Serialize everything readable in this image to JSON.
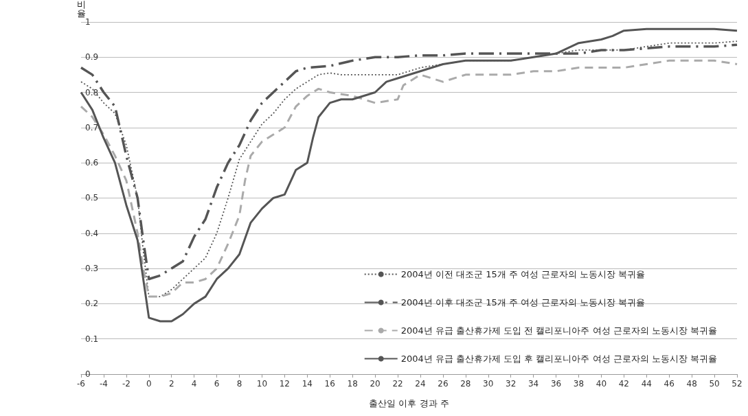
{
  "chart_data": {
    "type": "line",
    "xlabel": "출산일 이후 경과 주",
    "ylabel": "비율",
    "xlim": [
      -6,
      52
    ],
    "xticks": [
      -6,
      -4,
      -2,
      0,
      2,
      4,
      6,
      8,
      10,
      12,
      14,
      16,
      18,
      20,
      22,
      24,
      26,
      28,
      30,
      32,
      34,
      36,
      38,
      40,
      42,
      44,
      46,
      48,
      50,
      52
    ],
    "ylim": [
      0,
      1
    ],
    "yticks": [
      0,
      0.1,
      0.2,
      0.3,
      0.4,
      0.5,
      0.6,
      0.7,
      0.8,
      0.9,
      1
    ],
    "grid": "y",
    "legend": "bottom right",
    "marker": "none",
    "series": [
      {
        "name": "2004년 이전 대조군 15개 주 여성 근로자의 노동시장 복귀율",
        "color": "#555555",
        "line_style": "dotted",
        "x": [
          -6,
          -5,
          -4,
          -3,
          -2,
          -1,
          -0.5,
          0,
          1,
          2,
          3,
          4,
          5,
          6,
          7,
          8,
          9,
          10,
          11,
          12,
          13,
          14,
          15,
          16,
          17,
          18,
          20,
          22,
          24,
          26,
          28,
          30,
          32,
          34,
          36,
          38,
          40,
          42,
          44,
          46,
          48,
          50,
          52
        ],
        "values": [
          0.83,
          0.81,
          0.77,
          0.74,
          0.65,
          0.5,
          0.35,
          0.22,
          0.22,
          0.24,
          0.27,
          0.3,
          0.33,
          0.4,
          0.5,
          0.61,
          0.66,
          0.71,
          0.74,
          0.78,
          0.81,
          0.83,
          0.85,
          0.855,
          0.85,
          0.85,
          0.85,
          0.85,
          0.87,
          0.88,
          0.89,
          0.89,
          0.89,
          0.9,
          0.91,
          0.92,
          0.92,
          0.92,
          0.93,
          0.94,
          0.94,
          0.94,
          0.945
        ]
      },
      {
        "name": "2004년 이후 대조군 15개 주 여성 근로자의 노동시장 복귀율",
        "color": "#555555",
        "line_style": "dashdot",
        "x": [
          -6,
          -5,
          -4,
          -3,
          -2,
          -1,
          -0.5,
          0,
          1,
          2,
          3,
          4,
          5,
          6,
          7,
          8,
          9,
          10,
          11,
          12,
          13,
          14,
          16,
          18,
          20,
          22,
          24,
          26,
          28,
          30,
          32,
          34,
          36,
          38,
          40,
          42,
          44,
          46,
          48,
          50,
          52
        ],
        "values": [
          0.87,
          0.85,
          0.8,
          0.76,
          0.62,
          0.5,
          0.38,
          0.27,
          0.28,
          0.3,
          0.32,
          0.39,
          0.44,
          0.53,
          0.6,
          0.65,
          0.72,
          0.77,
          0.8,
          0.83,
          0.86,
          0.87,
          0.875,
          0.89,
          0.9,
          0.9,
          0.905,
          0.905,
          0.91,
          0.91,
          0.91,
          0.91,
          0.91,
          0.91,
          0.92,
          0.92,
          0.925,
          0.93,
          0.93,
          0.93,
          0.935
        ]
      },
      {
        "name": "2004년 유급 출산휴가제 도입 전 캘리포니아주 여성 근로자의 노동시장 복귀율",
        "color": "#aaaaaa",
        "line_style": "dashed",
        "x": [
          -6,
          -5,
          -4,
          -3,
          -2,
          -1,
          -0.5,
          0,
          1,
          2,
          3,
          4,
          5,
          6,
          7,
          8,
          8.5,
          9,
          10,
          11,
          12,
          13,
          14,
          15,
          16,
          18,
          20,
          22,
          22.5,
          24,
          26,
          28,
          30,
          32,
          34,
          36,
          38,
          40,
          42,
          44,
          46,
          48,
          50,
          52
        ],
        "values": [
          0.76,
          0.73,
          0.68,
          0.62,
          0.55,
          0.4,
          0.3,
          0.22,
          0.22,
          0.23,
          0.26,
          0.26,
          0.27,
          0.3,
          0.37,
          0.45,
          0.55,
          0.62,
          0.66,
          0.68,
          0.7,
          0.76,
          0.79,
          0.81,
          0.8,
          0.79,
          0.77,
          0.78,
          0.82,
          0.85,
          0.83,
          0.85,
          0.85,
          0.85,
          0.86,
          0.86,
          0.87,
          0.87,
          0.87,
          0.88,
          0.89,
          0.89,
          0.89,
          0.88
        ]
      },
      {
        "name": "2004년 유급 출산휴가제 도입 후 캘리포니아주 여성 근로자의 노동시장 복귀율",
        "color": "#555555",
        "line_style": "solid",
        "x": [
          -6,
          -5,
          -4,
          -3,
          -2,
          -1,
          -0.5,
          0,
          1,
          2,
          3,
          4,
          5,
          6,
          7,
          8,
          9,
          10,
          11,
          12,
          13,
          14,
          14.5,
          15,
          16,
          17,
          18,
          20,
          21,
          22,
          24,
          26,
          28,
          30,
          32,
          34,
          36,
          38,
          40,
          41,
          42,
          44,
          46,
          48,
          50,
          52
        ],
        "values": [
          0.8,
          0.75,
          0.67,
          0.6,
          0.48,
          0.38,
          0.27,
          0.16,
          0.15,
          0.15,
          0.17,
          0.2,
          0.22,
          0.27,
          0.3,
          0.34,
          0.43,
          0.47,
          0.5,
          0.51,
          0.58,
          0.6,
          0.67,
          0.73,
          0.77,
          0.78,
          0.78,
          0.8,
          0.83,
          0.84,
          0.86,
          0.88,
          0.89,
          0.89,
          0.89,
          0.9,
          0.91,
          0.94,
          0.95,
          0.96,
          0.975,
          0.98,
          0.98,
          0.98,
          0.98,
          0.975
        ]
      }
    ]
  }
}
